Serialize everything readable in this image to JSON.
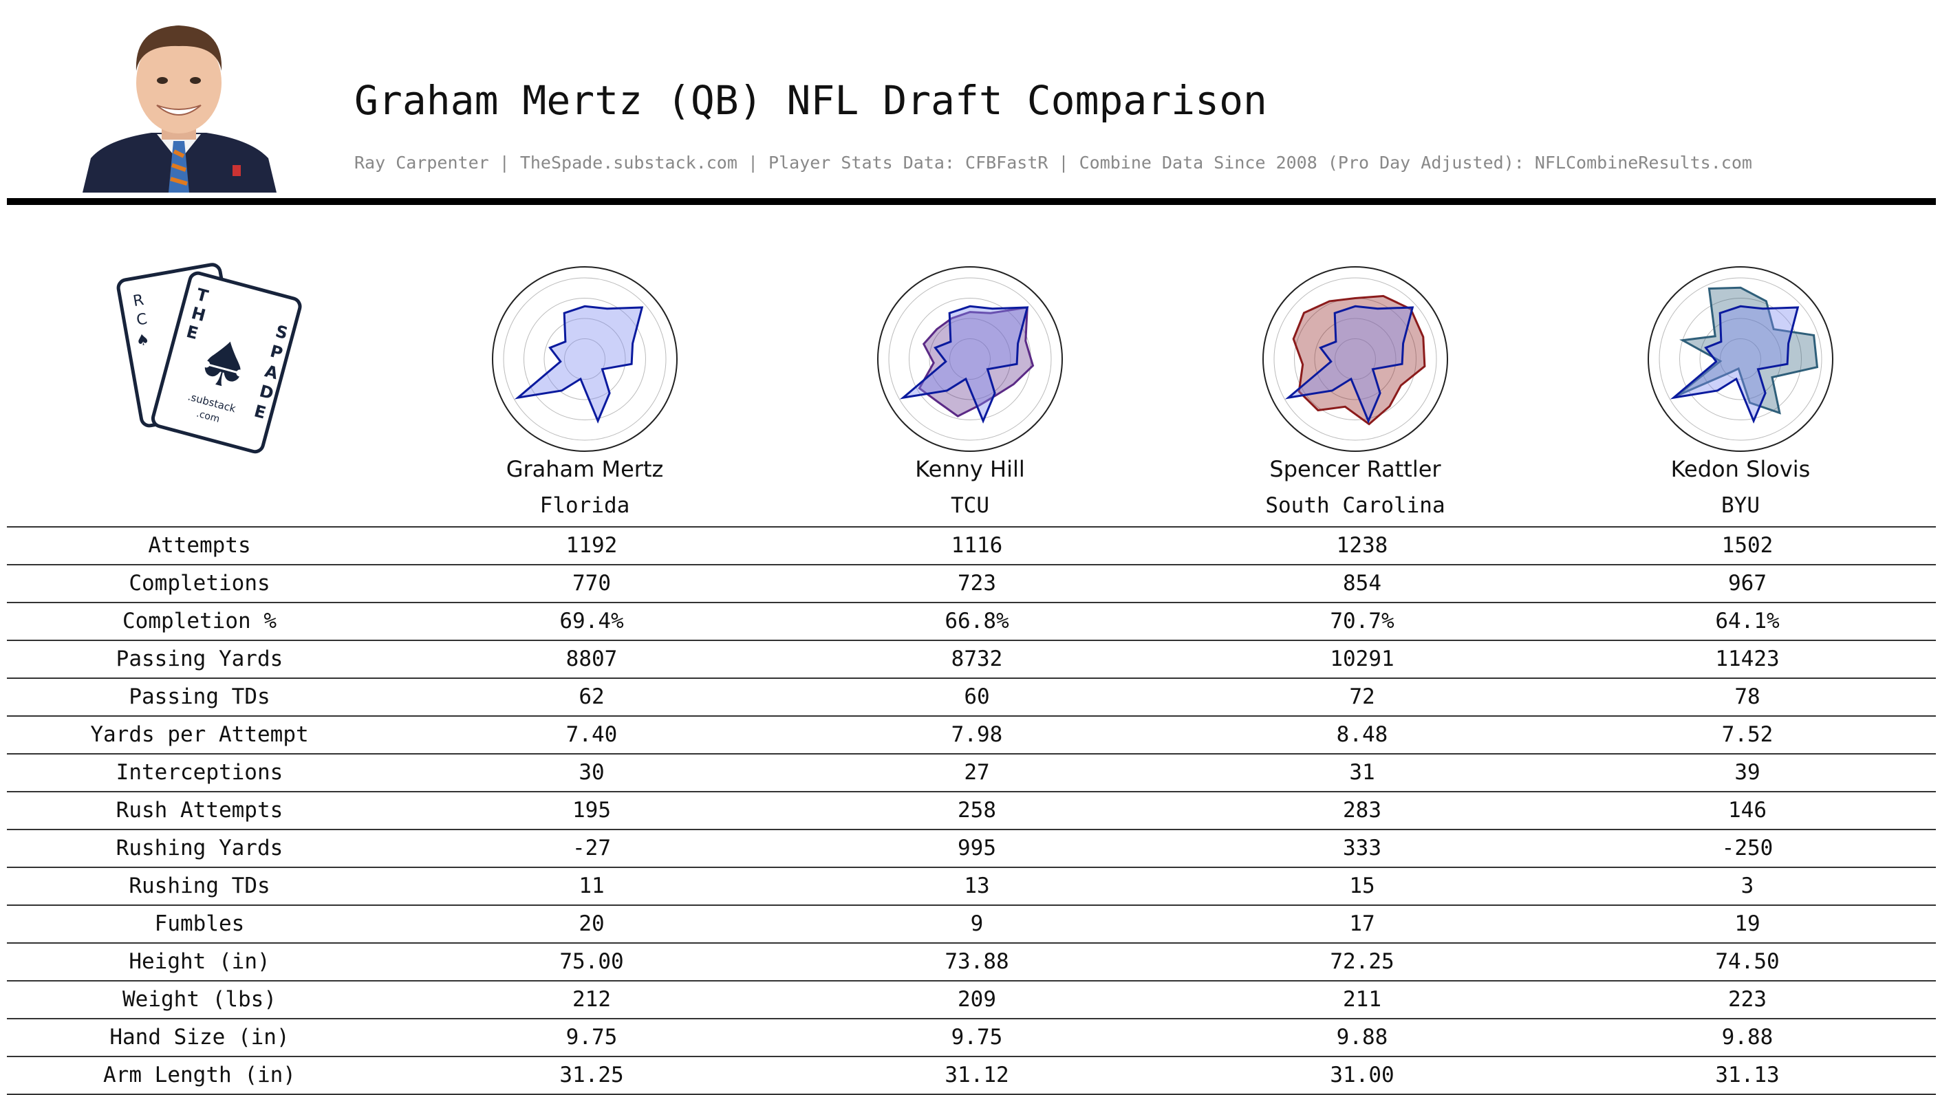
{
  "header": {
    "title": "Graham Mertz (QB) NFL Draft Comparison",
    "subtitle": "Ray Carpenter | TheSpade.substack.com | Player Stats Data: CFBFastR | Combine Data Since 2008 (Pro Day Adjusted): NFLCombineResults.com"
  },
  "logo": {
    "letters_left": [
      "R",
      "C",
      "T",
      "H",
      "E"
    ],
    "letters_right": [
      "S",
      "P",
      "A",
      "D",
      "E"
    ],
    "substack": ".substack",
    "com": ".com"
  },
  "colors": {
    "base_fill": "#7f8cf0",
    "base_line": "#0a1a9e",
    "grid": "#bbbbbb",
    "rule": "#000000"
  },
  "players": [
    {
      "name": "Graham Mertz",
      "school": "Florida"
    },
    {
      "name": "Kenny Hill",
      "school": "TCU",
      "color": "#5b2a86"
    },
    {
      "name": "Spencer Rattler",
      "school": "South Carolina",
      "color": "#8b1b1b"
    },
    {
      "name": "Kedon Slovis",
      "school": "BYU",
      "color": "#2f5f7a"
    }
  ],
  "table": {
    "rows": [
      {
        "stat": "Attempts",
        "values": [
          "1192",
          "1116",
          "1238",
          "1502"
        ]
      },
      {
        "stat": "Completions",
        "values": [
          "770",
          "723",
          "854",
          "967"
        ]
      },
      {
        "stat": "Completion %",
        "values": [
          "69.4%",
          "66.8%",
          "70.7%",
          "64.1%"
        ]
      },
      {
        "stat": "Passing Yards",
        "values": [
          "8807",
          "8732",
          "10291",
          "11423"
        ]
      },
      {
        "stat": "Passing TDs",
        "values": [
          "62",
          "60",
          "72",
          "78"
        ]
      },
      {
        "stat": "Yards per Attempt",
        "values": [
          "7.40",
          "7.98",
          "8.48",
          "7.52"
        ]
      },
      {
        "stat": "Interceptions",
        "values": [
          "30",
          "27",
          "31",
          "39"
        ]
      },
      {
        "stat": "Rush Attempts",
        "values": [
          "195",
          "258",
          "283",
          "146"
        ]
      },
      {
        "stat": "Rushing Yards",
        "values": [
          "-27",
          "995",
          "333",
          "-250"
        ]
      },
      {
        "stat": "Rushing TDs",
        "values": [
          "11",
          "13",
          "15",
          "3"
        ]
      },
      {
        "stat": "Fumbles",
        "values": [
          "20",
          "9",
          "17",
          "19"
        ]
      },
      {
        "stat": "Height (in)",
        "values": [
          "75.00",
          "73.88",
          "72.25",
          "74.50"
        ]
      },
      {
        "stat": "Weight (lbs)",
        "values": [
          "212",
          "209",
          "211",
          "223"
        ]
      },
      {
        "stat": "Hand Size (in)",
        "values": [
          "9.75",
          "9.75",
          "9.88",
          "9.88"
        ]
      },
      {
        "stat": "Arm Length (in)",
        "values": [
          "31.25",
          "31.12",
          "31.00",
          "31.13"
        ]
      }
    ]
  },
  "chart_data": {
    "type": "radar",
    "axes": [
      "Attempts",
      "Completions",
      "Completion %",
      "Passing Yards",
      "Passing TDs",
      "Yards per Attempt",
      "Interceptions",
      "Rush Attempts",
      "Rushing Yards",
      "Rushing TDs",
      "Fumbles",
      "Height (in)",
      "Weight (lbs)",
      "Hand Size (in)",
      "Arm Length (in)"
    ],
    "rlim": [
      0,
      1
    ],
    "rings": 4,
    "series": [
      {
        "name": "Graham Mertz",
        "values": [
          0.65,
          0.68,
          0.95,
          0.62,
          0.58,
          0.25,
          0.52,
          0.78,
          0.25,
          0.48,
          0.95,
          0.3,
          0.45,
          0.32,
          0.62
        ]
      },
      {
        "name": "Kenny Hill",
        "values": [
          0.58,
          0.62,
          0.95,
          0.72,
          0.78,
          0.62,
          0.55,
          0.58,
          0.72,
          0.66,
          0.72,
          0.45,
          0.6,
          0.55,
          0.55
        ]
      },
      {
        "name": "Spencer Rattler",
        "values": [
          0.75,
          0.85,
          0.92,
          0.88,
          0.86,
          0.65,
          0.72,
          0.82,
          0.6,
          0.78,
          0.8,
          0.65,
          0.8,
          0.85,
          0.78
        ]
      },
      {
        "name": "Kedon Slovis",
        "values": [
          0.88,
          0.78,
          0.55,
          0.95,
          0.95,
          0.45,
          0.82,
          0.55,
          0.12,
          0.2,
          0.9,
          0.25,
          0.75,
          0.42,
          0.95
        ]
      }
    ]
  }
}
